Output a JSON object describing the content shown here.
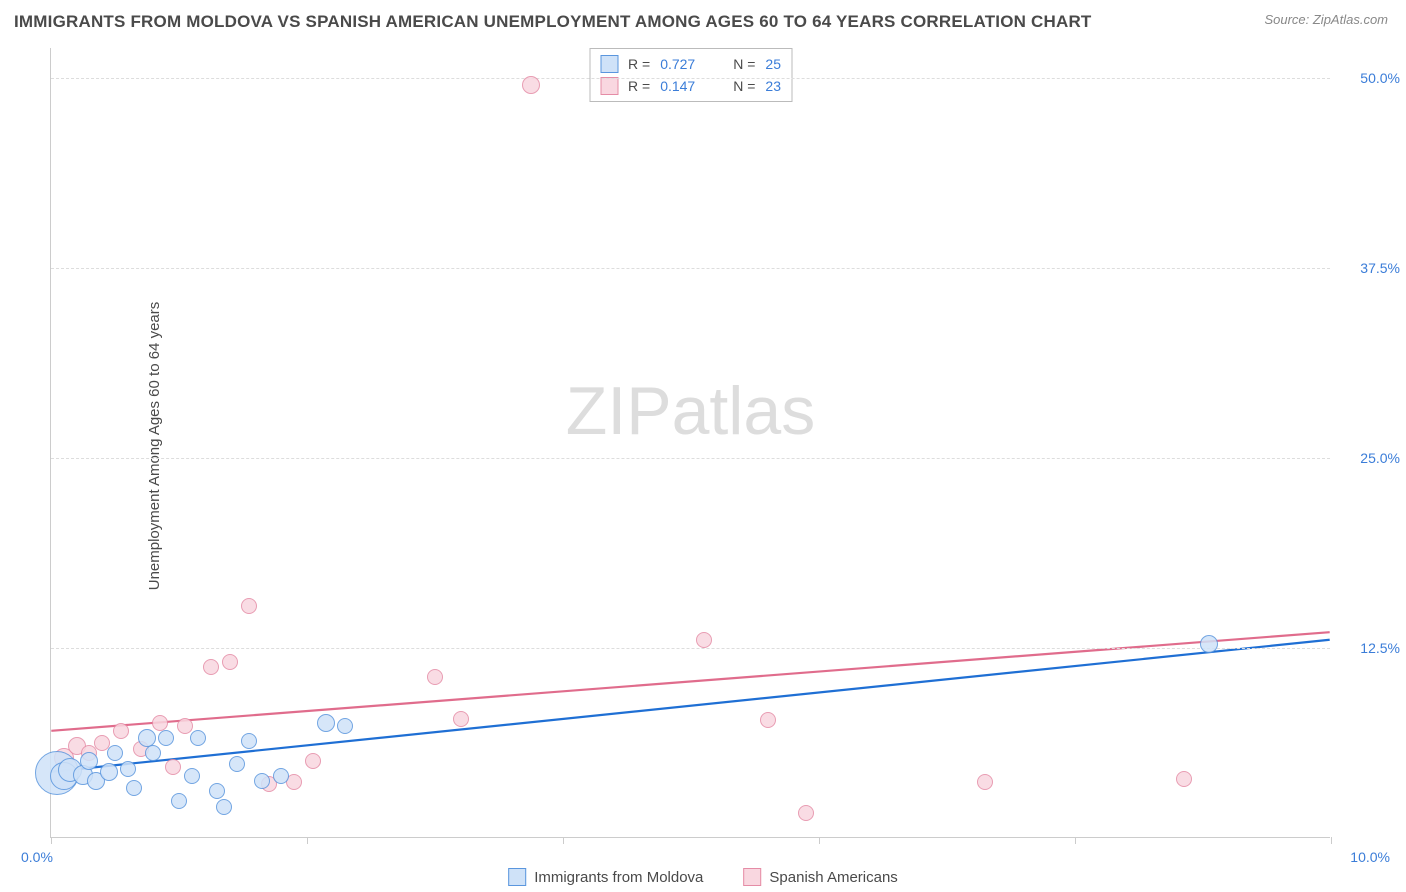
{
  "title": "IMMIGRANTS FROM MOLDOVA VS SPANISH AMERICAN UNEMPLOYMENT AMONG AGES 60 TO 64 YEARS CORRELATION CHART",
  "source": "Source: ZipAtlas.com",
  "y_axis_label": "Unemployment Among Ages 60 to 64 years",
  "watermark_a": "ZIP",
  "watermark_b": "atlas",
  "chart": {
    "type": "scatter",
    "xlim": [
      0,
      10
    ],
    "ylim": [
      0,
      52
    ],
    "x_ticks": [
      0,
      2,
      4,
      6,
      8,
      10
    ],
    "x_tick_labels": {
      "0": "0.0%",
      "10": "10.0%"
    },
    "y_ticks": [
      12.5,
      25.0,
      37.5,
      50.0
    ],
    "y_tick_labels": [
      "12.5%",
      "25.0%",
      "37.5%",
      "50.0%"
    ],
    "grid_color": "#dddddd",
    "axis_color": "#cccccc",
    "background_color": "#ffffff"
  },
  "series": [
    {
      "name": "Immigrants from Moldova",
      "marker_fill": "#cfe2f8",
      "marker_stroke": "#5a96de",
      "marker_radius": 10,
      "line_color": "#1f6fd4",
      "line_width": 2.2,
      "r": "0.727",
      "n": "25",
      "trend": {
        "x1": 0,
        "y1": 4.3,
        "x2": 10,
        "y2": 13.0
      },
      "points": [
        {
          "x": 0.05,
          "y": 4.2,
          "r": 22
        },
        {
          "x": 0.1,
          "y": 4.0,
          "r": 14
        },
        {
          "x": 0.15,
          "y": 4.4,
          "r": 12
        },
        {
          "x": 0.25,
          "y": 4.1,
          "r": 10
        },
        {
          "x": 0.3,
          "y": 5.0,
          "r": 9
        },
        {
          "x": 0.35,
          "y": 3.7,
          "r": 9
        },
        {
          "x": 0.45,
          "y": 4.3,
          "r": 9
        },
        {
          "x": 0.5,
          "y": 5.5,
          "r": 8
        },
        {
          "x": 0.6,
          "y": 4.5,
          "r": 8
        },
        {
          "x": 0.65,
          "y": 3.2,
          "r": 8
        },
        {
          "x": 0.75,
          "y": 6.5,
          "r": 9
        },
        {
          "x": 0.8,
          "y": 5.5,
          "r": 8
        },
        {
          "x": 0.9,
          "y": 6.5,
          "r": 8
        },
        {
          "x": 1.0,
          "y": 2.4,
          "r": 8
        },
        {
          "x": 1.1,
          "y": 4.0,
          "r": 8
        },
        {
          "x": 1.15,
          "y": 6.5,
          "r": 8
        },
        {
          "x": 1.3,
          "y": 3.0,
          "r": 8
        },
        {
          "x": 1.35,
          "y": 2.0,
          "r": 8
        },
        {
          "x": 1.45,
          "y": 4.8,
          "r": 8
        },
        {
          "x": 1.55,
          "y": 6.3,
          "r": 8
        },
        {
          "x": 1.65,
          "y": 3.7,
          "r": 8
        },
        {
          "x": 1.8,
          "y": 4.0,
          "r": 8
        },
        {
          "x": 2.15,
          "y": 7.5,
          "r": 9
        },
        {
          "x": 2.3,
          "y": 7.3,
          "r": 8
        },
        {
          "x": 9.05,
          "y": 12.7,
          "r": 9
        }
      ]
    },
    {
      "name": "Spanish Americans",
      "marker_fill": "#f9d7e0",
      "marker_stroke": "#e58ca6",
      "marker_radius": 10,
      "line_color": "#e06c8c",
      "line_width": 2.2,
      "r": "0.147",
      "n": "23",
      "trend": {
        "x1": 0,
        "y1": 7.0,
        "x2": 10,
        "y2": 13.5
      },
      "points": [
        {
          "x": 0.1,
          "y": 5.2,
          "r": 10
        },
        {
          "x": 0.2,
          "y": 6.0,
          "r": 9
        },
        {
          "x": 0.3,
          "y": 5.5,
          "r": 8
        },
        {
          "x": 0.4,
          "y": 6.2,
          "r": 8
        },
        {
          "x": 0.55,
          "y": 7.0,
          "r": 8
        },
        {
          "x": 0.7,
          "y": 5.8,
          "r": 8
        },
        {
          "x": 0.85,
          "y": 7.5,
          "r": 8
        },
        {
          "x": 0.95,
          "y": 4.6,
          "r": 8
        },
        {
          "x": 1.05,
          "y": 7.3,
          "r": 8
        },
        {
          "x": 1.25,
          "y": 11.2,
          "r": 8
        },
        {
          "x": 1.4,
          "y": 11.5,
          "r": 8
        },
        {
          "x": 1.55,
          "y": 15.2,
          "r": 8
        },
        {
          "x": 1.7,
          "y": 3.5,
          "r": 8
        },
        {
          "x": 1.9,
          "y": 3.6,
          "r": 8
        },
        {
          "x": 2.05,
          "y": 5.0,
          "r": 8
        },
        {
          "x": 3.0,
          "y": 10.5,
          "r": 8
        },
        {
          "x": 3.2,
          "y": 7.8,
          "r": 8
        },
        {
          "x": 3.75,
          "y": 49.5,
          "r": 9
        },
        {
          "x": 5.1,
          "y": 13.0,
          "r": 8
        },
        {
          "x": 5.6,
          "y": 7.7,
          "r": 8
        },
        {
          "x": 5.9,
          "y": 1.6,
          "r": 8
        },
        {
          "x": 7.3,
          "y": 3.6,
          "r": 8
        },
        {
          "x": 8.85,
          "y": 3.8,
          "r": 8
        }
      ]
    }
  ],
  "legend_box": {
    "r_label": "R =",
    "n_label": "N ="
  },
  "bottom_legend": [
    {
      "label": "Immigrants from Moldova",
      "fill": "#cfe2f8",
      "stroke": "#5a96de"
    },
    {
      "label": "Spanish Americans",
      "fill": "#f9d7e0",
      "stroke": "#e58ca6"
    }
  ]
}
